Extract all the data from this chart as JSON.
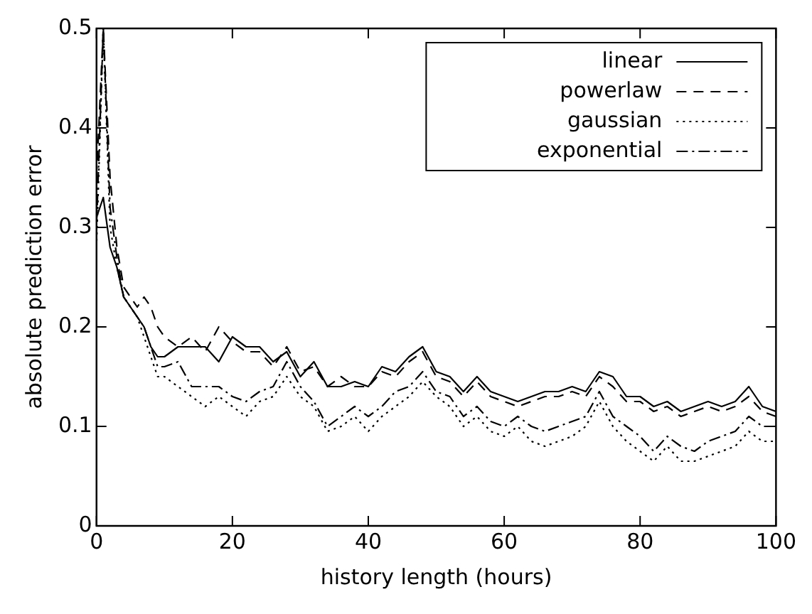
{
  "chart_data": {
    "type": "line",
    "xlabel": "history length (hours)",
    "ylabel": "absolute prediction error",
    "x": [
      0,
      1,
      2,
      3,
      4,
      5,
      6,
      7,
      8,
      9,
      10,
      12,
      14,
      16,
      18,
      20,
      22,
      24,
      26,
      28,
      30,
      32,
      34,
      36,
      38,
      40,
      42,
      44,
      46,
      48,
      50,
      52,
      54,
      56,
      58,
      60,
      62,
      64,
      66,
      68,
      70,
      72,
      74,
      76,
      78,
      80,
      82,
      84,
      86,
      88,
      90,
      92,
      94,
      96,
      98,
      100
    ],
    "xlim": [
      0,
      100
    ],
    "xticks": [
      0,
      20,
      40,
      60,
      80,
      100
    ],
    "ylim": [
      0,
      0.5
    ],
    "yticks": [
      0,
      0.1,
      0.2,
      0.3,
      0.4,
      0.5
    ],
    "grid": false,
    "legend": "top right",
    "marker": "none",
    "series": [
      {
        "name": "linear",
        "color": "#000000",
        "line_style": "solid",
        "values": [
          0.31,
          0.33,
          0.28,
          0.26,
          0.23,
          0.22,
          0.21,
          0.2,
          0.18,
          0.17,
          0.17,
          0.18,
          0.18,
          0.18,
          0.165,
          0.19,
          0.18,
          0.18,
          0.165,
          0.175,
          0.15,
          0.165,
          0.14,
          0.14,
          0.145,
          0.14,
          0.16,
          0.155,
          0.17,
          0.18,
          0.155,
          0.15,
          0.135,
          0.15,
          0.135,
          0.13,
          0.125,
          0.13,
          0.135,
          0.135,
          0.14,
          0.135,
          0.155,
          0.15,
          0.13,
          0.13,
          0.12,
          0.125,
          0.115,
          0.12,
          0.125,
          0.12,
          0.125,
          0.14,
          0.12,
          0.115
        ]
      },
      {
        "name": "powerlaw",
        "color": "#000000",
        "line_style": "dashed",
        "values": [
          0.35,
          0.5,
          0.35,
          0.28,
          0.24,
          0.23,
          0.22,
          0.23,
          0.22,
          0.2,
          0.19,
          0.18,
          0.19,
          0.175,
          0.2,
          0.185,
          0.175,
          0.175,
          0.16,
          0.18,
          0.155,
          0.16,
          0.14,
          0.15,
          0.14,
          0.14,
          0.155,
          0.15,
          0.165,
          0.175,
          0.15,
          0.145,
          0.13,
          0.145,
          0.13,
          0.125,
          0.12,
          0.125,
          0.13,
          0.13,
          0.135,
          0.13,
          0.15,
          0.14,
          0.125,
          0.125,
          0.115,
          0.12,
          0.11,
          0.115,
          0.12,
          0.115,
          0.12,
          0.13,
          0.115,
          0.11
        ]
      },
      {
        "name": "gaussian",
        "color": "#000000",
        "line_style": "dotted",
        "values": [
          0.28,
          0.5,
          0.3,
          0.26,
          0.23,
          0.22,
          0.21,
          0.19,
          0.17,
          0.15,
          0.15,
          0.14,
          0.13,
          0.12,
          0.13,
          0.12,
          0.11,
          0.125,
          0.13,
          0.15,
          0.13,
          0.12,
          0.095,
          0.1,
          0.11,
          0.095,
          0.11,
          0.12,
          0.13,
          0.145,
          0.13,
          0.12,
          0.1,
          0.11,
          0.095,
          0.09,
          0.1,
          0.085,
          0.08,
          0.085,
          0.09,
          0.1,
          0.125,
          0.1,
          0.085,
          0.075,
          0.065,
          0.08,
          0.065,
          0.065,
          0.07,
          0.075,
          0.08,
          0.095,
          0.085,
          0.085
        ]
      },
      {
        "name": "exponential",
        "color": "#000000",
        "line_style": "dashdot",
        "values": [
          0.3,
          0.5,
          0.32,
          0.27,
          0.23,
          0.22,
          0.21,
          0.2,
          0.18,
          0.16,
          0.16,
          0.165,
          0.14,
          0.14,
          0.14,
          0.13,
          0.125,
          0.135,
          0.14,
          0.165,
          0.14,
          0.125,
          0.1,
          0.11,
          0.12,
          0.11,
          0.12,
          0.135,
          0.14,
          0.155,
          0.135,
          0.13,
          0.11,
          0.12,
          0.105,
          0.1,
          0.11,
          0.1,
          0.095,
          0.1,
          0.105,
          0.11,
          0.135,
          0.11,
          0.1,
          0.09,
          0.075,
          0.09,
          0.08,
          0.075,
          0.085,
          0.09,
          0.095,
          0.11,
          0.1,
          0.1
        ]
      }
    ]
  }
}
